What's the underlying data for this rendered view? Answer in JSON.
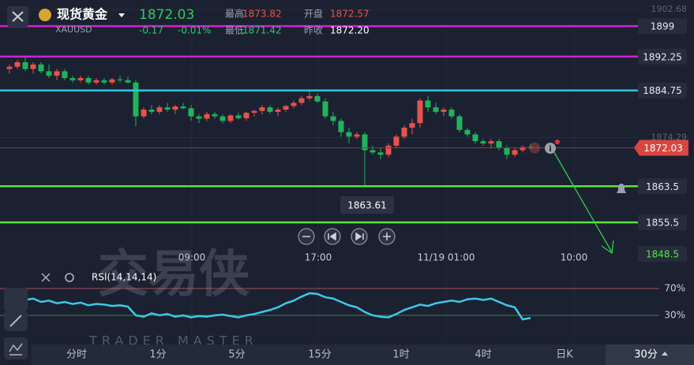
{
  "quote": {
    "name": "现货黄金",
    "symbol": "XAUUSD",
    "price": "1872.03",
    "change": "-0.17",
    "change_pct": "-0.01%",
    "fields": [
      {
        "label": "最高",
        "value": "1873.82"
      },
      {
        "label": "开盘",
        "value": "1872.57"
      },
      {
        "label": "最低",
        "value": "1871.42"
      },
      {
        "label": "昨收",
        "value": "1872.20"
      }
    ]
  },
  "chart_data": {
    "type": "candlestick",
    "ylim": [
      1844.5,
      1904.8
    ],
    "yticks": [
      1874.29,
      1902.68
    ],
    "last_price": 1872.03,
    "up_color": "#e8524a",
    "down_color": "#1fb45c",
    "levels": [
      {
        "value": 1899,
        "color": "#d41fd6",
        "line": true
      },
      {
        "value": 1892.25,
        "color": "#d41fd6",
        "line": true
      },
      {
        "value": 1884.75,
        "color": "#2cc6e2",
        "line": true
      },
      {
        "value": 1863.5,
        "color": "#5be33b",
        "line": true
      },
      {
        "value": 1855.5,
        "color": "#5be33b",
        "line": true
      },
      {
        "value": 1848.5,
        "color": "#5be33b",
        "line": false
      }
    ],
    "time_labels": [
      "09:00",
      "17:00",
      "11/19 01:00",
      "10:00"
    ],
    "candles": [
      [
        1889.5,
        1890.5,
        1888.5,
        1890
      ],
      [
        1890,
        1891.5,
        1889.5,
        1891
      ],
      [
        1891,
        1892.5,
        1889,
        1889.5
      ],
      [
        1889.5,
        1891,
        1888.5,
        1890.5
      ],
      [
        1890.5,
        1891,
        1888.5,
        1889
      ],
      [
        1889,
        1890.5,
        1887.5,
        1888
      ],
      [
        1888,
        1889.5,
        1887,
        1889
      ],
      [
        1889,
        1889.5,
        1887,
        1887.5
      ],
      [
        1887.5,
        1888,
        1886.5,
        1887
      ],
      [
        1887,
        1888,
        1886.5,
        1887.5
      ],
      [
        1887.5,
        1888,
        1886,
        1886.5
      ],
      [
        1886.5,
        1887.5,
        1886,
        1887
      ],
      [
        1887,
        1887.5,
        1886,
        1886.5
      ],
      [
        1886.5,
        1887.5,
        1886,
        1887.2
      ],
      [
        1887.2,
        1888,
        1886.5,
        1887
      ],
      [
        1887,
        1887.8,
        1886.3,
        1886.5
      ],
      [
        1886.5,
        1887,
        1876.8,
        1879
      ],
      [
        1879,
        1881,
        1878.5,
        1880.5
      ],
      [
        1880.5,
        1881.5,
        1879.5,
        1880
      ],
      [
        1880,
        1881.5,
        1879.5,
        1881
      ],
      [
        1881,
        1882,
        1880,
        1880.5
      ],
      [
        1880.5,
        1881.5,
        1879.5,
        1881.2
      ],
      [
        1881.2,
        1882,
        1880.5,
        1880.8
      ],
      [
        1880.8,
        1881.5,
        1878,
        1879
      ],
      [
        1879,
        1879.5,
        1877.5,
        1878.5
      ],
      [
        1878.5,
        1880,
        1878,
        1879.5
      ],
      [
        1879.5,
        1880,
        1878.5,
        1879
      ],
      [
        1879,
        1879.5,
        1877.5,
        1878
      ],
      [
        1878,
        1879.5,
        1877.5,
        1879.2
      ],
      [
        1879.2,
        1879.8,
        1878.3,
        1878.6
      ],
      [
        1878.6,
        1880,
        1878,
        1879.8
      ],
      [
        1879.8,
        1880.5,
        1879,
        1880.2
      ],
      [
        1880.2,
        1881.5,
        1879.5,
        1881
      ],
      [
        1881,
        1881.5,
        1879.5,
        1880
      ],
      [
        1880,
        1881,
        1879,
        1880.5
      ],
      [
        1880.5,
        1881.5,
        1880,
        1881.3
      ],
      [
        1881.3,
        1882.5,
        1880.8,
        1882
      ],
      [
        1882,
        1883.5,
        1881.5,
        1883
      ],
      [
        1883,
        1884.5,
        1882.5,
        1883.5
      ],
      [
        1883.5,
        1884,
        1882,
        1882.3
      ],
      [
        1882.3,
        1883,
        1878.5,
        1879
      ],
      [
        1879,
        1880,
        1877,
        1878
      ],
      [
        1878,
        1878.5,
        1874.5,
        1875.5
      ],
      [
        1875.5,
        1876.5,
        1873,
        1874.5
      ],
      [
        1874.5,
        1875.5,
        1874,
        1875
      ],
      [
        1875,
        1875.5,
        1863.61,
        1871.5
      ],
      [
        1871.5,
        1872.5,
        1870.5,
        1871
      ],
      [
        1871,
        1872,
        1869.5,
        1870.5
      ],
      [
        1870.5,
        1873,
        1870,
        1872.5
      ],
      [
        1872.5,
        1875,
        1872,
        1874.5
      ],
      [
        1874.5,
        1877,
        1874,
        1876.5
      ],
      [
        1876.5,
        1878.5,
        1875,
        1877.5
      ],
      [
        1877.5,
        1883,
        1876.5,
        1882.5
      ],
      [
        1882.5,
        1883.5,
        1880,
        1881
      ],
      [
        1881,
        1882,
        1879.5,
        1880
      ],
      [
        1880,
        1881,
        1879,
        1880.5
      ],
      [
        1880.5,
        1881,
        1878.5,
        1879
      ],
      [
        1879,
        1879.5,
        1875.5,
        1876
      ],
      [
        1876,
        1876.5,
        1874.5,
        1875
      ],
      [
        1875,
        1875.5,
        1873,
        1873.5
      ],
      [
        1873.5,
        1874,
        1872.5,
        1873
      ],
      [
        1873,
        1874,
        1872,
        1873.5
      ],
      [
        1873.5,
        1874,
        1871.5,
        1872
      ],
      [
        1872,
        1872.5,
        1869.5,
        1870.5
      ],
      [
        1870.5,
        1872,
        1870,
        1871.5
      ],
      [
        1871.5,
        1872.5,
        1871,
        1872.2
      ],
      [
        1872.2,
        1872.8,
        1871.8,
        1872.03
      ]
    ]
  },
  "rsi_data": {
    "label": "RSI(14,14,14)",
    "color": "#3ec8e6",
    "ylim": [
      -7.6,
      88.8
    ],
    "levels": [
      {
        "value": 70,
        "label": "70%",
        "color": "#a24e58"
      },
      {
        "value": 30,
        "label": "30%",
        "color": "#3f7f46"
      }
    ],
    "values": [
      52,
      54,
      53,
      55,
      50,
      52,
      48,
      50,
      47,
      49,
      45,
      47,
      46,
      44,
      45,
      43,
      30,
      28,
      33,
      30,
      32,
      28,
      30,
      27,
      29,
      28,
      30,
      31,
      29,
      27,
      30,
      32,
      35,
      38,
      42,
      48,
      52,
      58,
      63,
      62,
      57,
      55,
      50,
      45,
      42,
      35,
      30,
      28,
      27,
      32,
      38,
      42,
      46,
      44,
      48,
      50,
      52,
      50,
      54,
      55,
      53,
      55,
      50,
      45,
      42,
      24,
      26
    ]
  },
  "watermark": {
    "title": "交易侠",
    "subtitle": "TRADER MASTER"
  },
  "tabs": [
    "分时",
    "1分",
    "5分",
    "15分",
    "1时",
    "4时",
    "日K",
    "30分"
  ]
}
